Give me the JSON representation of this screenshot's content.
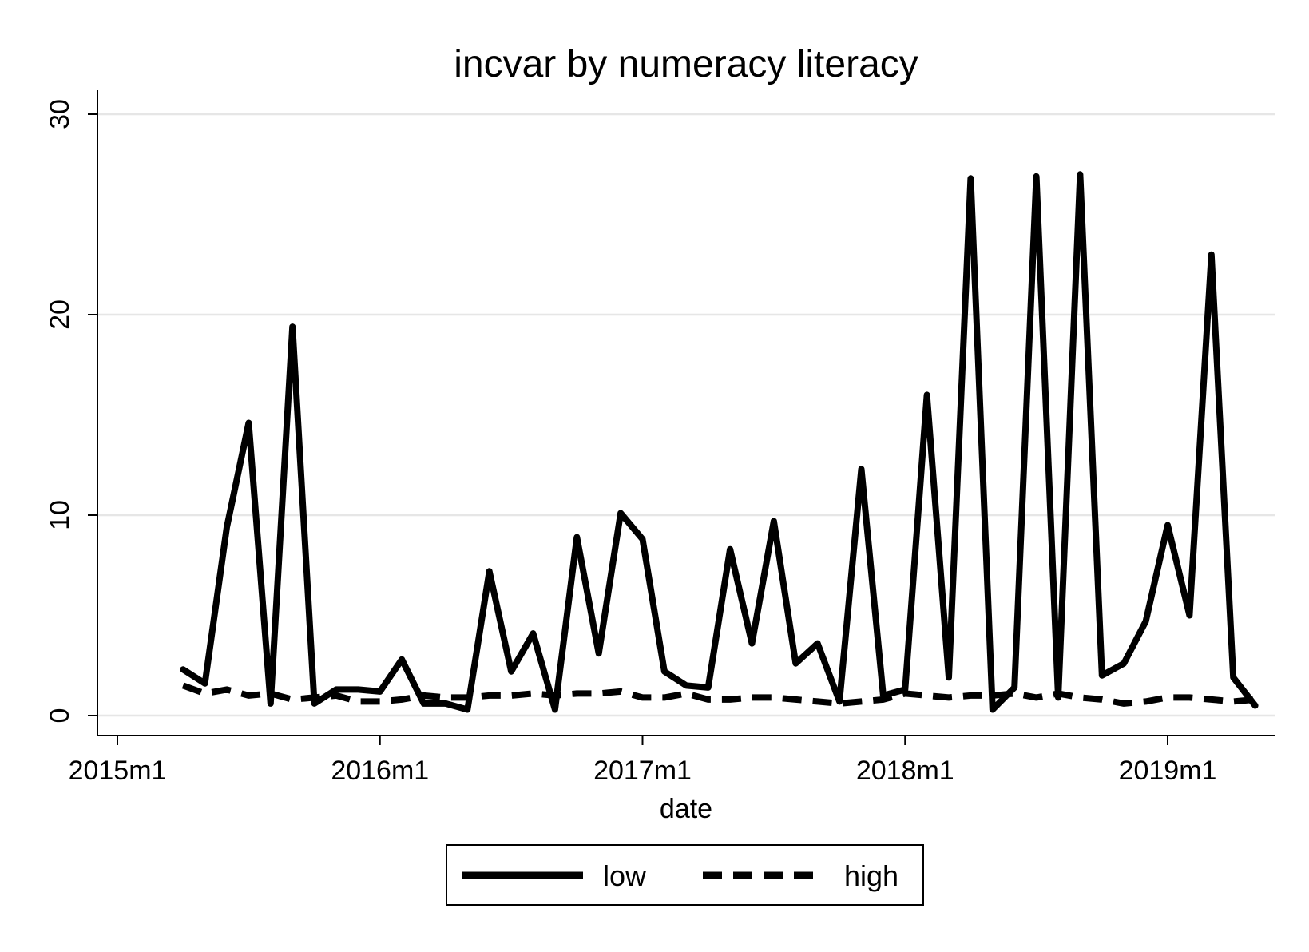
{
  "chart_data": {
    "type": "line",
    "title": "incvar by numeracy literacy",
    "xlabel": "date",
    "ylabel": "",
    "x_ticks": [
      "2015m1",
      "2016m1",
      "2017m1",
      "2018m1",
      "2019m1"
    ],
    "y_ticks": [
      "0",
      "10",
      "20",
      "30"
    ],
    "xlim": [
      "2015m1",
      "2019m6"
    ],
    "ylim": [
      -1,
      31
    ],
    "grid": "horizontal",
    "legend_position": "bottom",
    "x": [
      "2015m4",
      "2015m5",
      "2015m6",
      "2015m7",
      "2015m8",
      "2015m9",
      "2015m10",
      "2015m11",
      "2015m12",
      "2016m1",
      "2016m2",
      "2016m3",
      "2016m4",
      "2016m5",
      "2016m6",
      "2016m7",
      "2016m8",
      "2016m9",
      "2016m10",
      "2016m11",
      "2016m12",
      "2017m1",
      "2017m2",
      "2017m3",
      "2017m4",
      "2017m5",
      "2017m6",
      "2017m7",
      "2017m8",
      "2017m9",
      "2017m10",
      "2017m11",
      "2017m12",
      "2018m1",
      "2018m2",
      "2018m3",
      "2018m4",
      "2018m5",
      "2018m6",
      "2018m7",
      "2018m8",
      "2018m9",
      "2018m10",
      "2018m11",
      "2018m12",
      "2019m1",
      "2019m2",
      "2019m3",
      "2019m4",
      "2019m5"
    ],
    "series": [
      {
        "name": "low",
        "style": "solid",
        "color": "#000000",
        "values": [
          2.3,
          1.6,
          9.4,
          14.6,
          0.6,
          19.4,
          0.6,
          1.3,
          1.3,
          1.2,
          2.8,
          0.6,
          0.6,
          0.3,
          7.2,
          2.2,
          4.1,
          0.3,
          8.9,
          3.1,
          10.1,
          8.8,
          2.2,
          1.5,
          1.4,
          8.3,
          3.6,
          9.7,
          2.6,
          3.6,
          0.7,
          12.3,
          1.0,
          1.3,
          16.0,
          1.9,
          26.8,
          0.3,
          1.4,
          26.9,
          0.9,
          27.0,
          2.0,
          2.6,
          4.7,
          9.5,
          5.0,
          23.0,
          1.9,
          0.5
        ]
      },
      {
        "name": "high",
        "style": "dashed",
        "color": "#000000",
        "values": [
          1.5,
          1.1,
          1.3,
          1.0,
          1.1,
          0.8,
          0.9,
          1.0,
          0.7,
          0.7,
          0.8,
          1.0,
          0.9,
          0.9,
          1.0,
          1.0,
          1.1,
          1.0,
          1.1,
          1.1,
          1.2,
          0.9,
          0.9,
          1.1,
          0.8,
          0.8,
          0.9,
          0.9,
          0.8,
          0.7,
          0.6,
          0.7,
          0.8,
          1.1,
          1.0,
          0.9,
          1.0,
          1.0,
          1.1,
          0.9,
          1.1,
          0.9,
          0.8,
          0.6,
          0.7,
          0.9,
          0.9,
          0.8,
          0.7,
          0.8
        ]
      }
    ]
  }
}
